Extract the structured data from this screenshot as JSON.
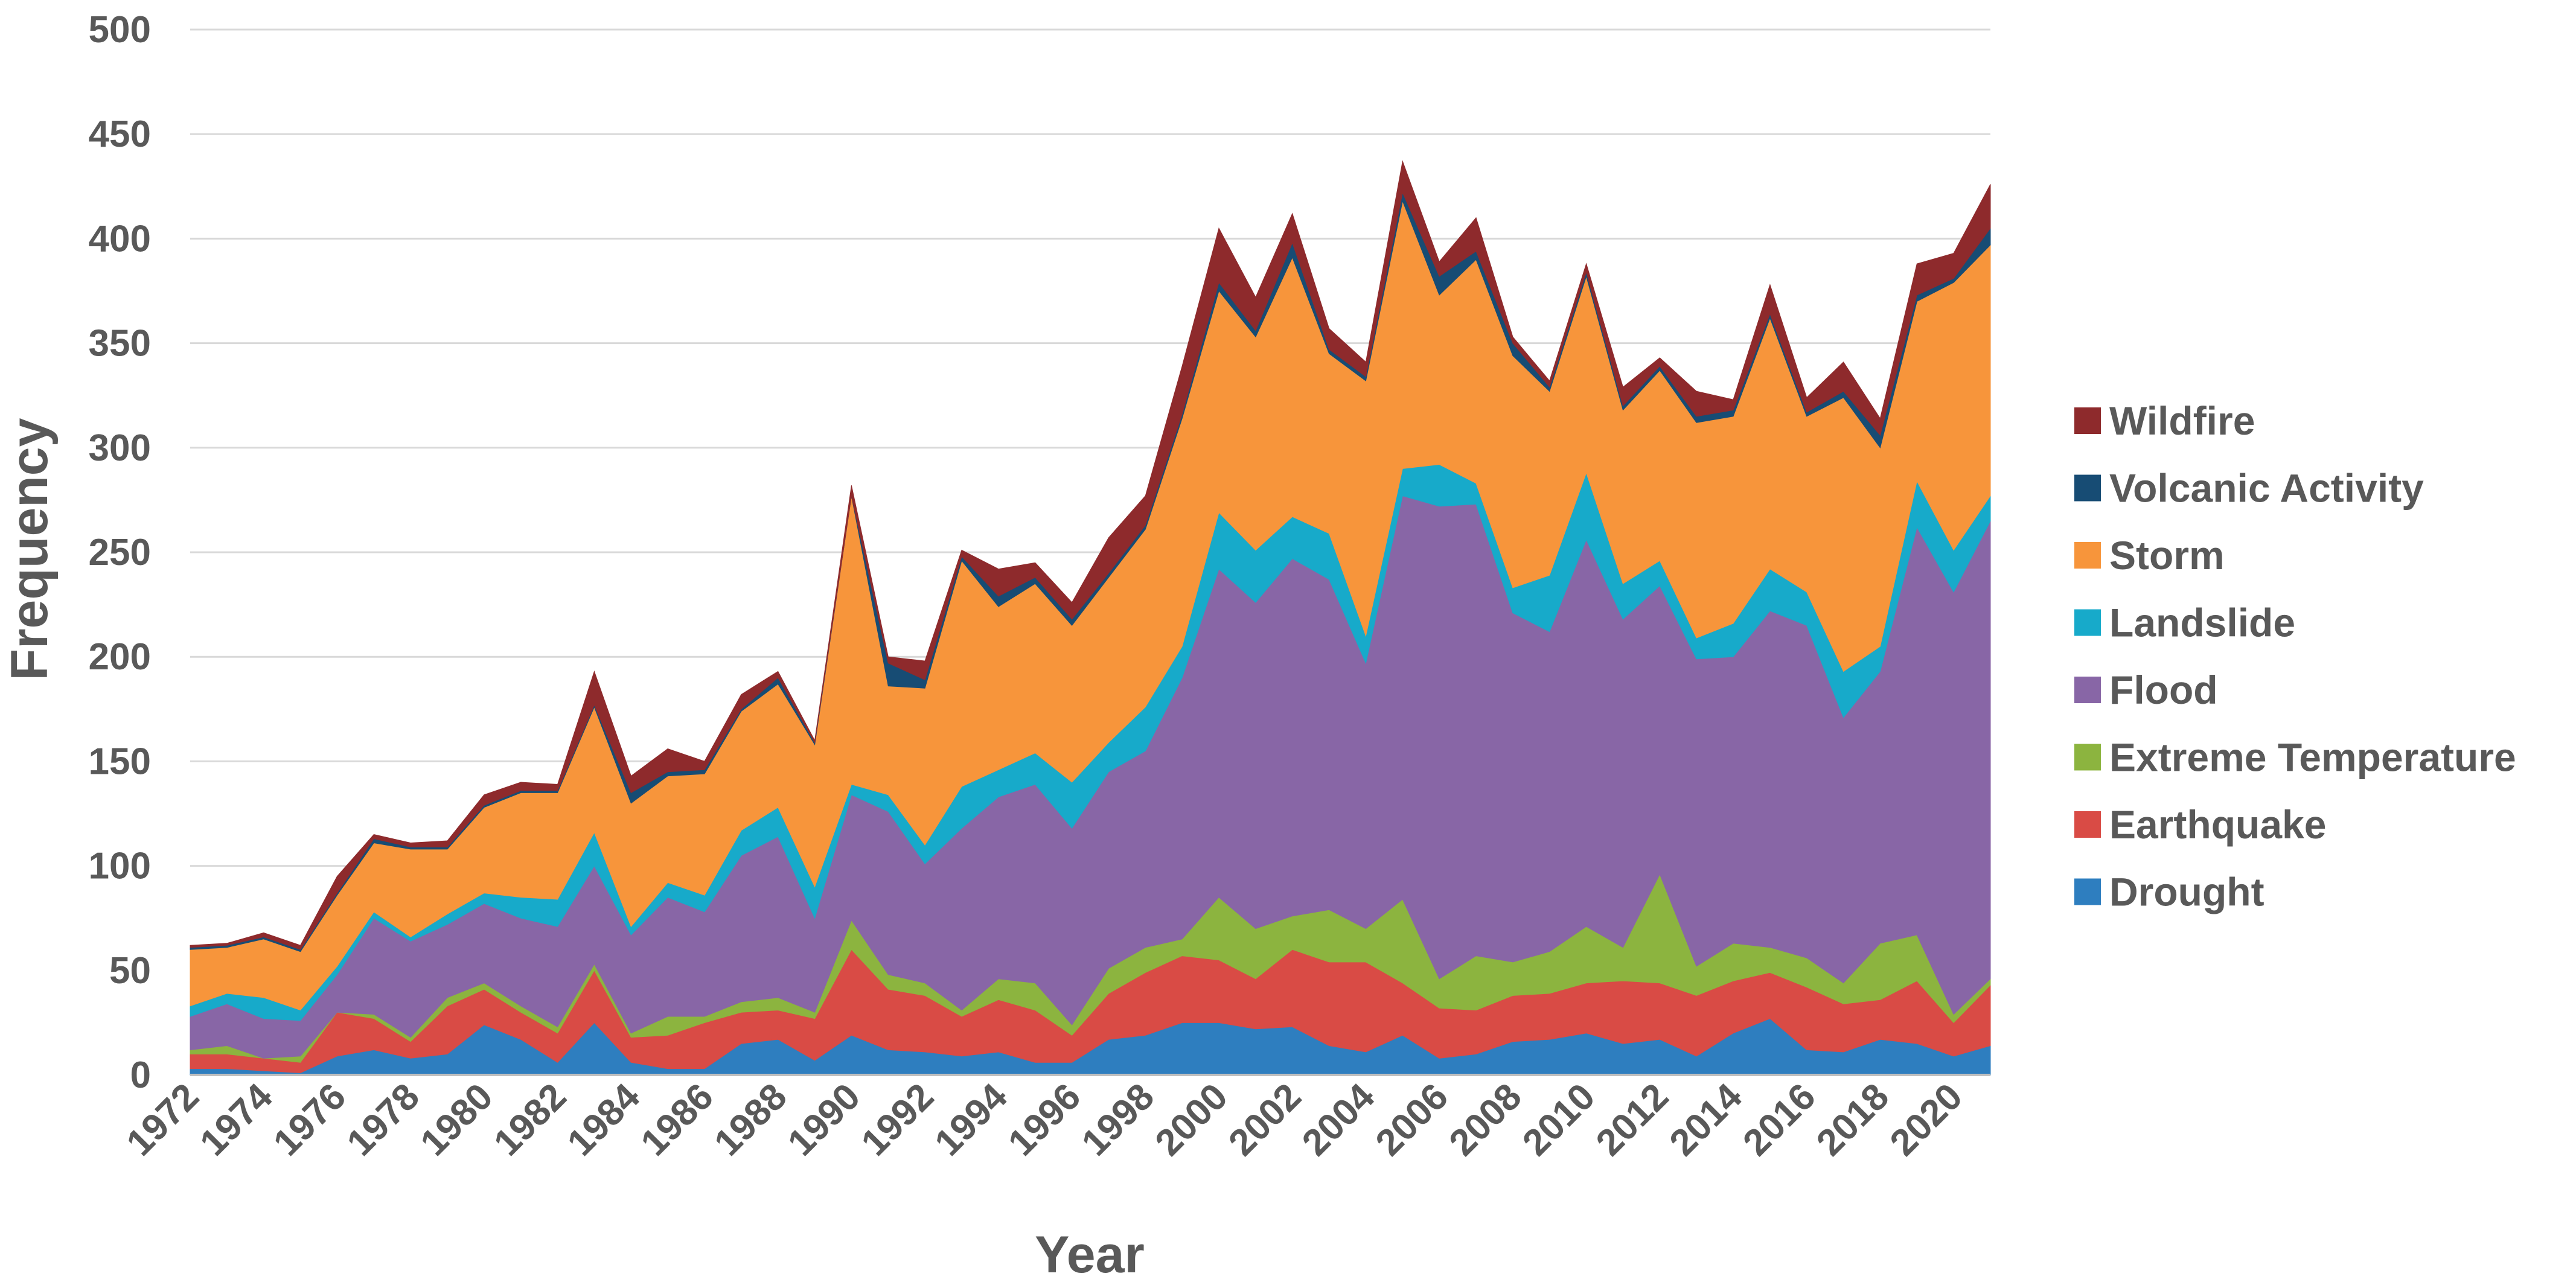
{
  "chart_data": {
    "type": "area",
    "stacked": true,
    "xlabel": "Year",
    "ylabel": "Frequency",
    "ylim": [
      0,
      500
    ],
    "yticks": [
      0,
      50,
      100,
      150,
      200,
      250,
      300,
      350,
      400,
      450,
      500
    ],
    "xtick_labels": [
      "1972",
      "1974",
      "1976",
      "1978",
      "1980",
      "1982",
      "1984",
      "1986",
      "1988",
      "1990",
      "1992",
      "1994",
      "1996",
      "1998",
      "2000",
      "2002",
      "2004",
      "2006",
      "2008",
      "2010",
      "2012",
      "2014",
      "2016",
      "2018",
      "2020"
    ],
    "grid": "horizontal",
    "legend_position": "right",
    "x": [
      1972,
      1973,
      1974,
      1975,
      1976,
      1977,
      1978,
      1979,
      1980,
      1981,
      1982,
      1983,
      1984,
      1985,
      1986,
      1987,
      1988,
      1989,
      1990,
      1991,
      1992,
      1993,
      1994,
      1995,
      1996,
      1997,
      1998,
      1999,
      2000,
      2001,
      2002,
      2003,
      2004,
      2005,
      2006,
      2007,
      2008,
      2009,
      2010,
      2011,
      2012,
      2013,
      2014,
      2015,
      2016,
      2017,
      2018,
      2019,
      2020,
      2021
    ],
    "series": [
      {
        "name": "Drought",
        "color": "#2E7EBF",
        "values": [
          3,
          3,
          2,
          1,
          9,
          12,
          8,
          10,
          24,
          17,
          6,
          25,
          6,
          3,
          3,
          15,
          17,
          7,
          19,
          12,
          11,
          9,
          11,
          6,
          6,
          17,
          19,
          25,
          25,
          22,
          23,
          14,
          11,
          19,
          8,
          10,
          16,
          17,
          20,
          15,
          17,
          9,
          20,
          27,
          12,
          11,
          17,
          15,
          9,
          14
        ]
      },
      {
        "name": "Earthquake",
        "color": "#D94B45",
        "values": [
          7,
          7,
          6,
          5,
          21,
          15,
          8,
          23,
          17,
          13,
          14,
          25,
          12,
          16,
          22,
          15,
          14,
          20,
          41,
          29,
          27,
          19,
          25,
          25,
          13,
          22,
          30,
          32,
          30,
          24,
          37,
          40,
          43,
          25,
          24,
          21,
          22,
          22,
          24,
          30,
          27,
          29,
          25,
          22,
          30,
          23,
          19,
          30,
          16,
          29
        ]
      },
      {
        "name": "Extreme Temperature",
        "color": "#8CB43F",
        "values": [
          2,
          4,
          0,
          3,
          0,
          2,
          2,
          4,
          3,
          3,
          3,
          3,
          2,
          9,
          3,
          5,
          6,
          3,
          14,
          7,
          6,
          3,
          10,
          13,
          5,
          12,
          12,
          8,
          30,
          24,
          16,
          25,
          16,
          40,
          14,
          26,
          16,
          20,
          27,
          16,
          52,
          14,
          18,
          12,
          14,
          10,
          27,
          22,
          4,
          3
        ]
      },
      {
        "name": "Flood",
        "color": "#8866A6",
        "values": [
          16,
          20,
          19,
          17,
          18,
          46,
          46,
          35,
          38,
          42,
          48,
          47,
          47,
          57,
          50,
          70,
          77,
          45,
          60,
          78,
          57,
          87,
          87,
          95,
          94,
          94,
          94,
          125,
          157,
          156,
          171,
          158,
          127,
          193,
          226,
          216,
          167,
          153,
          185,
          157,
          138,
          147,
          137,
          161,
          159,
          127,
          130,
          195,
          202,
          219
        ]
      },
      {
        "name": "Landslide",
        "color": "#17AACA",
        "values": [
          5,
          5,
          10,
          5,
          4,
          3,
          2,
          5,
          5,
          10,
          13,
          16,
          4,
          7,
          8,
          12,
          14,
          15,
          5,
          8,
          9,
          20,
          13,
          15,
          22,
          14,
          21,
          15,
          27,
          25,
          20,
          22,
          13,
          13,
          20,
          10,
          12,
          27,
          32,
          17,
          12,
          10,
          16,
          20,
          16,
          22,
          12,
          22,
          20,
          12
        ]
      },
      {
        "name": "Storm",
        "color": "#F7953B",
        "values": [
          27,
          22,
          28,
          28,
          34,
          33,
          42,
          31,
          41,
          50,
          51,
          60,
          59,
          51,
          58,
          57,
          59,
          68,
          138,
          52,
          75,
          108,
          78,
          81,
          75,
          79,
          85,
          109,
          106,
          102,
          124,
          86,
          122,
          128,
          81,
          107,
          111,
          88,
          94,
          83,
          91,
          103,
          99,
          120,
          84,
          131,
          95,
          86,
          128,
          120
        ]
      },
      {
        "name": "Volcanic Activity",
        "color": "#174C74",
        "values": [
          1,
          1,
          1,
          1,
          1,
          2,
          1,
          1,
          1,
          1,
          1,
          1,
          5,
          2,
          2,
          1,
          3,
          1,
          0,
          11,
          4,
          2,
          5,
          3,
          3,
          2,
          2,
          2,
          4,
          3,
          7,
          2,
          2,
          4,
          9,
          4,
          6,
          2,
          2,
          2,
          2,
          3,
          3,
          2,
          2,
          3,
          6,
          3,
          2,
          8
        ]
      },
      {
        "name": "Wildfire",
        "color": "#8E2A2C",
        "values": [
          1,
          1,
          2,
          2,
          8,
          2,
          2,
          3,
          5,
          4,
          3,
          16,
          8,
          11,
          4,
          7,
          3,
          1,
          5,
          3,
          9,
          3,
          13,
          7,
          8,
          17,
          14,
          23,
          26,
          16,
          14,
          10,
          7,
          15,
          7,
          16,
          3,
          3,
          4,
          9,
          4,
          12,
          5,
          14,
          7,
          14,
          8,
          15,
          12,
          21
        ]
      }
    ]
  }
}
